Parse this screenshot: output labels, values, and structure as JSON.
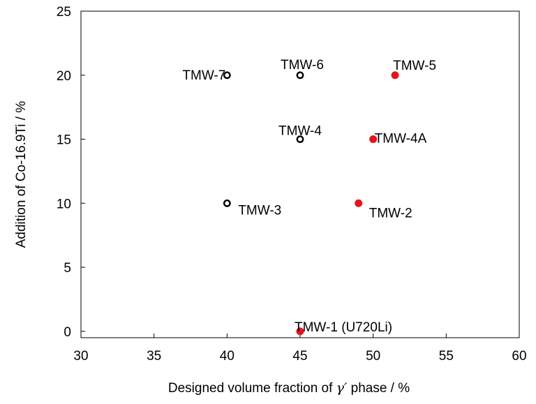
{
  "chart_data": {
    "type": "scatter",
    "title": "",
    "xlabel_prefix": "Designed volume fraction of ",
    "xlabel_symbol": "γ′",
    "xlabel_suffix": " phase / %",
    "ylabel": "Addition of Co-16.9Ti / %",
    "xlim": [
      30,
      60
    ],
    "ylim": [
      -0.5,
      25
    ],
    "xticks": [
      30,
      35,
      40,
      45,
      50,
      55,
      60
    ],
    "yticks": [
      0,
      5,
      10,
      15,
      20,
      25
    ],
    "grid": false,
    "legend": "none",
    "colors": {
      "filled": "#e8141c",
      "open": "#000000"
    },
    "points": [
      {
        "label": "TMW-1 (U720Li)",
        "x": 45,
        "y": 0,
        "marker": "filled"
      },
      {
        "label": "TMW-2",
        "x": 49,
        "y": 10,
        "marker": "filled"
      },
      {
        "label": "TMW-3",
        "x": 40,
        "y": 10,
        "marker": "open"
      },
      {
        "label": "TMW-4",
        "x": 45,
        "y": 15,
        "marker": "open"
      },
      {
        "label": "TMW-4A",
        "x": 50,
        "y": 15,
        "marker": "filled"
      },
      {
        "label": "TMW-5",
        "x": 51.5,
        "y": 20,
        "marker": "filled"
      },
      {
        "label": "TMW-6",
        "x": 45,
        "y": 20,
        "marker": "open"
      },
      {
        "label": "TMW-7",
        "x": 40,
        "y": 20,
        "marker": "open"
      }
    ]
  }
}
